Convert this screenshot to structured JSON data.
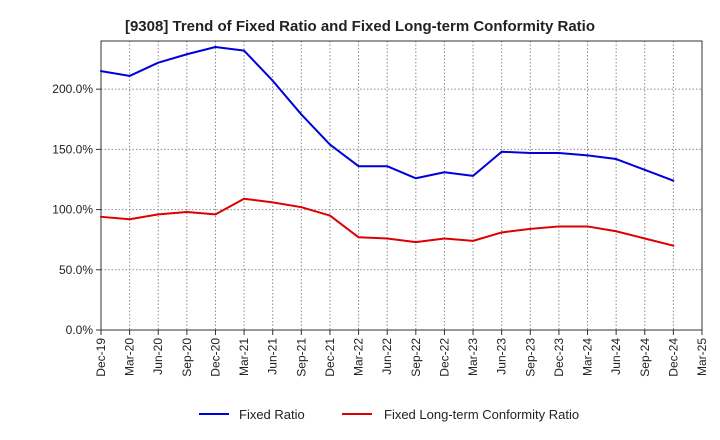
{
  "chart_data": {
    "type": "line",
    "title": "[9308]  Trend of Fixed Ratio and Fixed Long-term Conformity Ratio",
    "xlabel": "",
    "ylabel": "",
    "ylim": [
      0,
      240
    ],
    "yticks": [
      0,
      50,
      100,
      150,
      200
    ],
    "ytick_labels": [
      "0.0%",
      "50.0%",
      "100.0%",
      "150.0%",
      "200.0%"
    ],
    "grid": true,
    "legend_position": "bottom",
    "x_tick_labels": [
      "Dec-19",
      "Mar-20",
      "Jun-20",
      "Sep-20",
      "Dec-20",
      "Mar-21",
      "Jun-21",
      "Sep-21",
      "Dec-21",
      "Mar-22",
      "Jun-22",
      "Sep-22",
      "Dec-22",
      "Mar-23",
      "Jun-23",
      "Sep-23",
      "Dec-23",
      "Mar-24",
      "Jun-24",
      "Sep-24",
      "Dec-24",
      "Mar-25"
    ],
    "x": [
      "Dec-19",
      "Mar-20",
      "Jun-20",
      "Sep-20",
      "Dec-20",
      "Mar-21",
      "Jun-21",
      "Sep-21",
      "Dec-21",
      "Mar-22",
      "Jun-22",
      "Sep-22",
      "Dec-22",
      "Mar-23",
      "Jun-23",
      "Sep-23",
      "Dec-23",
      "Mar-24",
      "Jun-24",
      "Sep-24",
      "Dec-24"
    ],
    "series": [
      {
        "name": "Fixed Ratio",
        "color": "#0000dd",
        "values": [
          215,
          211,
          222,
          229,
          235,
          232,
          207,
          179,
          154,
          136,
          136,
          126,
          131,
          128,
          148,
          147,
          147,
          145,
          142,
          133,
          124
        ]
      },
      {
        "name": "Fixed Long-term Conformity Ratio",
        "color": "#dd0000",
        "values": [
          94,
          92,
          96,
          98,
          96,
          109,
          106,
          102,
          95,
          77,
          76,
          73,
          76,
          74,
          81,
          84,
          86,
          86,
          82,
          76,
          70
        ]
      }
    ]
  }
}
